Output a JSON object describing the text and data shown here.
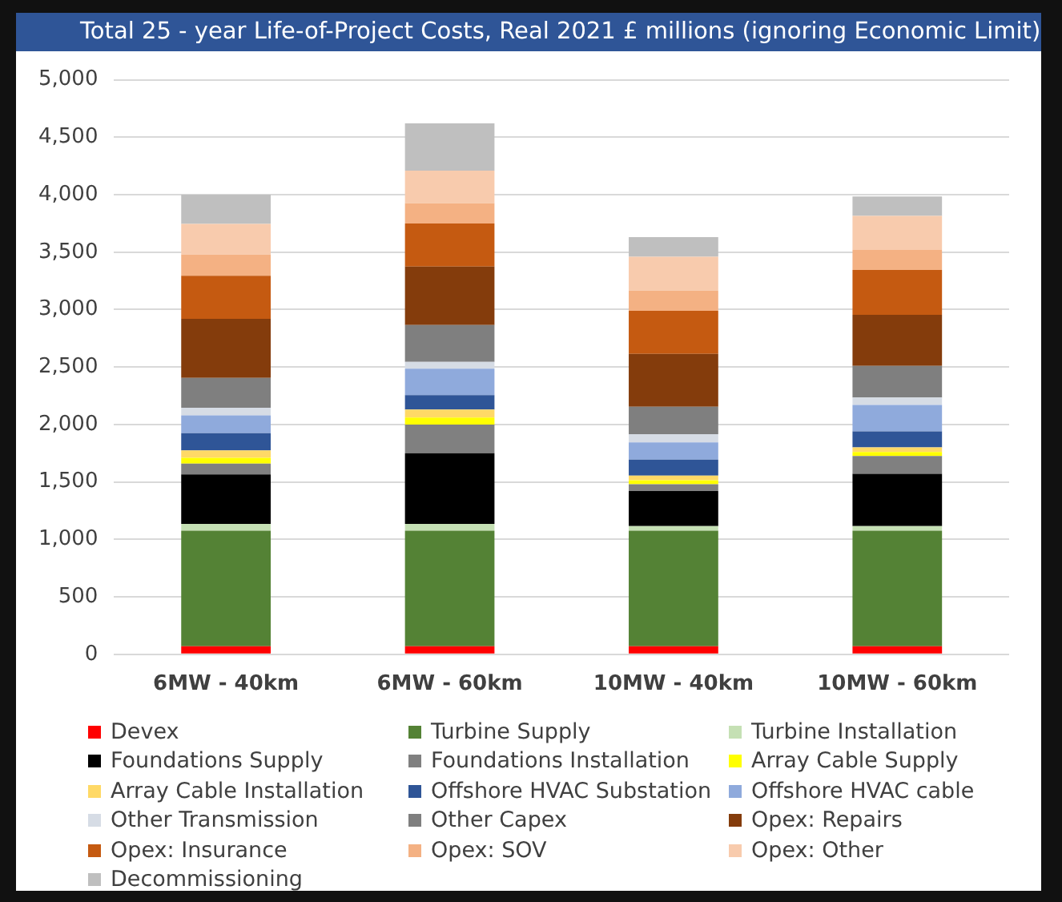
{
  "chart_data": {
    "type": "bar",
    "title": "Total 25 - year Life-of-Project Costs, Real 2021 £ millions (ignoring Economic Limit)",
    "categories": [
      "6MW - 40km",
      "6MW - 60km",
      "10MW - 40km",
      "10MW - 60km"
    ],
    "stacked": true,
    "ylim": [
      0,
      5000
    ],
    "yticks": [
      {
        "value": 0,
        "label": "0"
      },
      {
        "value": 500,
        "label": "500"
      },
      {
        "value": 1000,
        "label": "1,000"
      },
      {
        "value": 1500,
        "label": "1,500"
      },
      {
        "value": 2000,
        "label": "2,000"
      },
      {
        "value": 2500,
        "label": "2,500"
      },
      {
        "value": 3000,
        "label": "3,000"
      },
      {
        "value": 3500,
        "label": "3,500"
      },
      {
        "value": 4000,
        "label": "4,000"
      },
      {
        "value": 4500,
        "label": "4,500"
      },
      {
        "value": 5000,
        "label": "5,000"
      }
    ],
    "grid": "y",
    "legend": "bottom",
    "series": [
      {
        "name": "Devex",
        "color": "#ff0000",
        "values": [
          70,
          70,
          70,
          70
        ]
      },
      {
        "name": "Turbine Supply",
        "color": "#548235",
        "values": [
          1005,
          1005,
          1005,
          1005
        ]
      },
      {
        "name": "Turbine Installation",
        "color": "#c5e0b4",
        "values": [
          60,
          60,
          40,
          40
        ]
      },
      {
        "name": "Foundations Supply",
        "color": "#000000",
        "values": [
          430,
          615,
          305,
          455
        ]
      },
      {
        "name": "Foundations Installation",
        "color": "#808080",
        "values": [
          95,
          250,
          60,
          155
        ]
      },
      {
        "name": "Array Cable Supply",
        "color": "#ffff00",
        "values": [
          50,
          60,
          35,
          35
        ]
      },
      {
        "name": "Array Cable Installation",
        "color": "#ffd966",
        "values": [
          65,
          70,
          40,
          40
        ]
      },
      {
        "name": "Offshore HVAC Substation",
        "color": "#2f5597",
        "values": [
          150,
          125,
          140,
          140
        ]
      },
      {
        "name": "Offshore HVAC cable",
        "color": "#8faadc",
        "values": [
          155,
          230,
          150,
          230
        ]
      },
      {
        "name": "Other Transmission",
        "color": "#d6dce5",
        "values": [
          65,
          60,
          70,
          65
        ]
      },
      {
        "name": "Other Capex",
        "color": "#7f7f7f",
        "values": [
          260,
          320,
          240,
          275
        ]
      },
      {
        "name": "Opex: Repairs",
        "color": "#843c0c",
        "values": [
          515,
          510,
          460,
          445
        ]
      },
      {
        "name": "Opex: Insurance",
        "color": "#c55a11",
        "values": [
          375,
          375,
          375,
          390
        ]
      },
      {
        "name": "Opex: SOV",
        "color": "#f4b183",
        "values": [
          185,
          175,
          175,
          175
        ]
      },
      {
        "name": "Opex: Other",
        "color": "#f8cbad",
        "values": [
          265,
          285,
          295,
          295
        ]
      },
      {
        "name": "Decommissioning",
        "color": "#bfbfbf",
        "values": [
          255,
          410,
          170,
          170
        ]
      }
    ]
  }
}
